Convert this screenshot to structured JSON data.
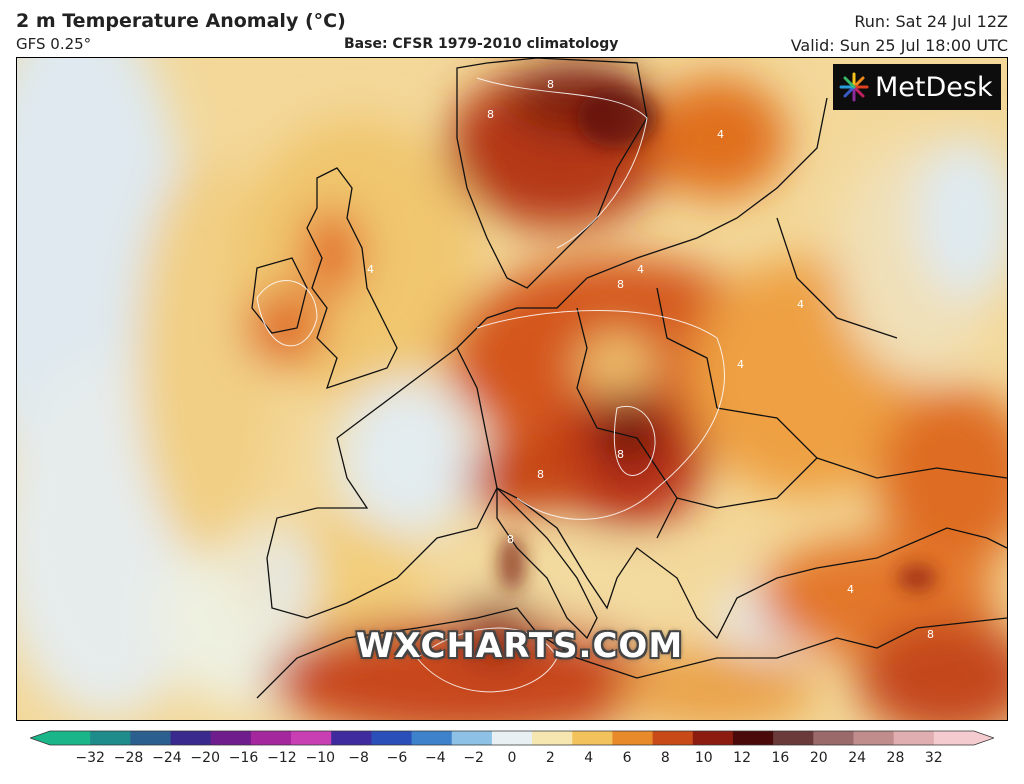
{
  "header": {
    "title": "2 m Temperature Anomaly (°C)",
    "model": "GFS 0.25°",
    "base": "Base: CFSR 1979-2010 climatology",
    "run": "Run: Sat 24 Jul 12Z",
    "valid": "Valid: Sun 25 Jul 18:00 UTC"
  },
  "branding": {
    "logo_text": "MetDesk",
    "watermark": "WXCHARTS.COM"
  },
  "map": {
    "region": "Europe",
    "contour_labels": [
      "4",
      "8"
    ]
  },
  "colorbar": {
    "ticks": [
      "−32",
      "−28",
      "−24",
      "−20",
      "−16",
      "−12",
      "−10",
      "−8",
      "−6",
      "−4",
      "−2",
      "0",
      "2",
      "4",
      "6",
      "8",
      "10",
      "12",
      "16",
      "20",
      "24",
      "28",
      "32"
    ],
    "colors": [
      "#1bb58a",
      "#1f8c8c",
      "#2b5f8f",
      "#3a2a8e",
      "#6f1c8c",
      "#a4279e",
      "#c83fb4",
      "#3f2a9e",
      "#2a4fb8",
      "#3f82cc",
      "#8dc2e6",
      "#e8f0f4",
      "#f6e6b0",
      "#f2c35c",
      "#e88a2a",
      "#c84a18",
      "#8c1c10",
      "#4a0a0a",
      "#6a3a3a",
      "#9a6a6a",
      "#c08c8c",
      "#e0aeb0",
      "#f4ccd0"
    ]
  }
}
